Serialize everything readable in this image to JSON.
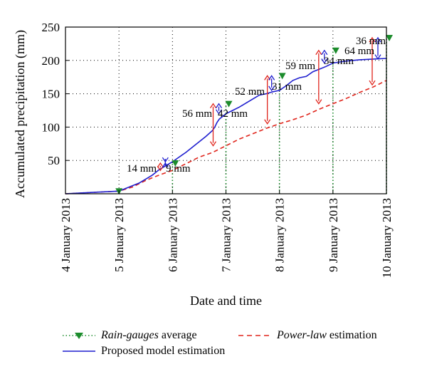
{
  "chart_data": {
    "type": "line",
    "xlabel": "Date and time",
    "ylabel": "Accumulated precipitation (mm)",
    "xlim": [
      "2013-01-04",
      "2013-01-10"
    ],
    "ylim": [
      0,
      250
    ],
    "x_ticks": [
      "4 January 2013",
      "5 January 2013",
      "6 January 2013",
      "7 January 2013",
      "8 January 2013",
      "9 January 2013",
      "10 January 2013"
    ],
    "y_ticks": [
      50,
      100,
      150,
      200,
      250
    ],
    "grid": true,
    "series": [
      {
        "name": "Proposed model estimation",
        "color": "#1f1fcf",
        "style": "solid",
        "x": [
          "2013-01-04 00:00",
          "2013-01-04 06:00",
          "2013-01-04 12:00",
          "2013-01-04 18:00",
          "2013-01-05 00:00",
          "2013-01-05 03:00",
          "2013-01-05 06:00",
          "2013-01-05 09:00",
          "2013-01-05 12:00",
          "2013-01-05 15:00",
          "2013-01-05 18:00",
          "2013-01-05 21:00",
          "2013-01-06 00:00",
          "2013-01-06 03:00",
          "2013-01-06 06:00",
          "2013-01-06 09:00",
          "2013-01-06 12:00",
          "2013-01-06 15:00",
          "2013-01-06 18:00",
          "2013-01-06 19:00",
          "2013-01-06 20:00",
          "2013-01-06 21:00",
          "2013-01-07 00:00",
          "2013-01-07 03:00",
          "2013-01-07 06:00",
          "2013-01-07 09:00",
          "2013-01-07 12:00",
          "2013-01-07 15:00",
          "2013-01-07 18:00",
          "2013-01-07 21:00",
          "2013-01-08 00:00",
          "2013-01-08 03:00",
          "2013-01-08 06:00",
          "2013-01-08 09:00",
          "2013-01-08 12:00",
          "2013-01-08 15:00",
          "2013-01-08 18:00",
          "2013-01-08 21:00",
          "2013-01-09 00:00",
          "2013-01-09 06:00",
          "2013-01-09 12:00",
          "2013-01-09 18:00",
          "2013-01-10 00:00"
        ],
        "values": [
          0,
          1,
          2,
          3,
          4,
          8,
          12,
          16,
          22,
          28,
          36,
          42,
          48,
          55,
          62,
          70,
          78,
          86,
          95,
          100,
          107,
          112,
          120,
          125,
          130,
          136,
          142,
          148,
          150,
          153,
          155,
          162,
          170,
          174,
          176,
          183,
          187,
          191,
          196,
          199,
          201,
          202,
          203
        ]
      },
      {
        "name": "Power-law estimation",
        "color": "#e0251c",
        "style": "dashed",
        "x": [
          "2013-01-04 00:00",
          "2013-01-04 06:00",
          "2013-01-04 12:00",
          "2013-01-04 18:00",
          "2013-01-05 00:00",
          "2013-01-05 06:00",
          "2013-01-05 12:00",
          "2013-01-05 18:00",
          "2013-01-06 00:00",
          "2013-01-06 06:00",
          "2013-01-06 12:00",
          "2013-01-06 18:00",
          "2013-01-07 00:00",
          "2013-01-07 06:00",
          "2013-01-07 12:00",
          "2013-01-07 18:00",
          "2013-01-08 00:00",
          "2013-01-08 06:00",
          "2013-01-08 12:00",
          "2013-01-08 18:00",
          "2013-01-09 00:00",
          "2013-01-09 06:00",
          "2013-01-09 12:00",
          "2013-01-09 18:00",
          "2013-01-10 00:00"
        ],
        "values": [
          0,
          1,
          2,
          3,
          4,
          10,
          20,
          28,
          35,
          45,
          55,
          62,
          72,
          82,
          90,
          98,
          105,
          111,
          118,
          127,
          135,
          143,
          152,
          160,
          170
        ]
      },
      {
        "name": "Rain-gauges average",
        "color": "#1c8c2c",
        "style": "dotted-markers",
        "x": [
          "2013-01-05",
          "2013-01-06",
          "2013-01-07",
          "2013-01-08",
          "2013-01-09",
          "2013-01-10"
        ],
        "values": [
          4,
          46,
          135,
          177,
          215,
          234
        ]
      }
    ],
    "annotations": [
      {
        "text": "14 mm",
        "date": "2013-01-06"
      },
      {
        "text": "9 mm",
        "date": "2013-01-06"
      },
      {
        "text": "56 mm",
        "date": "2013-01-07"
      },
      {
        "text": "42 mm",
        "date": "2013-01-07"
      },
      {
        "text": "52 mm",
        "date": "2013-01-08"
      },
      {
        "text": "31 mm",
        "date": "2013-01-08"
      },
      {
        "text": "59 mm",
        "date": "2013-01-09"
      },
      {
        "text": "34 mm",
        "date": "2013-01-09"
      },
      {
        "text": "64 mm",
        "date": "2013-01-10"
      },
      {
        "text": "36 mm",
        "date": "2013-01-10"
      }
    ]
  },
  "legend": {
    "rain_gauges": "Rain-gauges",
    "rain_gauges_suffix": " average",
    "power_law": "Power-law",
    "power_law_suffix": " estimation",
    "proposed": "Proposed model estimation"
  }
}
